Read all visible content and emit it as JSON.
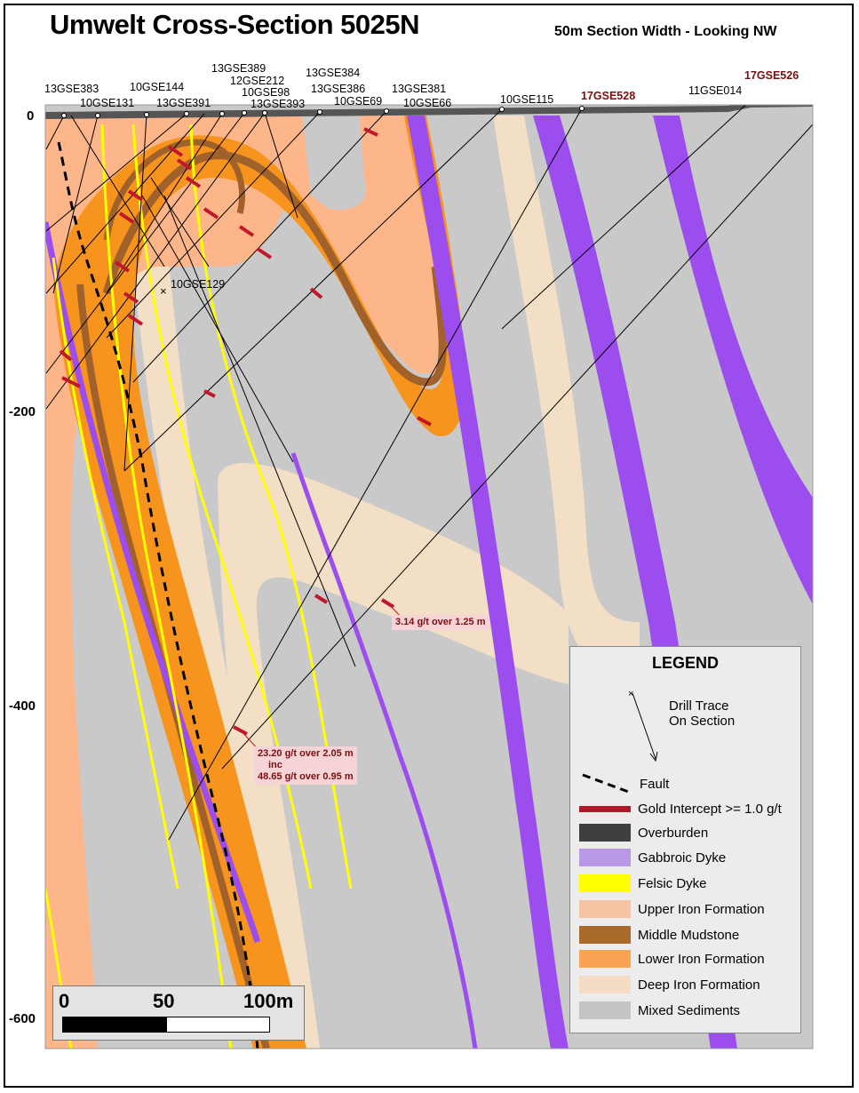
{
  "title": "Umwelt Cross-Section 5025N",
  "subtitle": "50m Section Width - Looking NW",
  "elevations": [
    "0",
    "-200",
    "-400",
    "-600"
  ],
  "drill_holes": [
    {
      "name": "13GSE383",
      "red": false
    },
    {
      "name": "10GSE131",
      "red": false
    },
    {
      "name": "10GSE144",
      "red": false
    },
    {
      "name": "13GSE391",
      "red": false
    },
    {
      "name": "13GSE389",
      "red": false
    },
    {
      "name": "12GSE212",
      "red": false
    },
    {
      "name": "10GSE98",
      "red": false
    },
    {
      "name": "13GSE393",
      "red": false
    },
    {
      "name": "13GSE384",
      "red": false
    },
    {
      "name": "13GSE386",
      "red": false
    },
    {
      "name": "10GSE69",
      "red": false
    },
    {
      "name": "13GSE381",
      "red": false
    },
    {
      "name": "10GSE66",
      "red": false
    },
    {
      "name": "10GSE115",
      "red": false
    },
    {
      "name": "17GSE528",
      "red": true
    },
    {
      "name": "11GSE014",
      "red": false
    },
    {
      "name": "17GSE526",
      "red": true
    },
    {
      "name": "10GSE129",
      "red": false
    }
  ],
  "intercepts": {
    "a": "3.14 g/t over 1.25 m",
    "b1": "23.20 g/t over 2.05 m",
    "b2": "inc",
    "b3": "48.65 g/t over 0.95 m"
  },
  "legend": {
    "title": "LEGEND",
    "drill_trace": "Drill Trace\nOn Section",
    "drill_trace_1": "Drill Trace",
    "drill_trace_2": "On Section",
    "fault": "Fault",
    "items": [
      {
        "label": "Gold Intercept >= 1.0 g/t",
        "color": "#b0182a"
      },
      {
        "label": "Overburden",
        "color": "#3f3f3f"
      },
      {
        "label": "Gabbroic Dyke",
        "color": "#b999e6"
      },
      {
        "label": "Felsic Dyke",
        "color": "#ffff00"
      },
      {
        "label": "Upper Iron Formation",
        "color": "#f6c4a2"
      },
      {
        "label": "Middle Mudstone",
        "color": "#a86b2c"
      },
      {
        "label": "Lower Iron Formation",
        "color": "#f9a453"
      },
      {
        "label": "Deep Iron Formation",
        "color": "#f3dcc3"
      },
      {
        "label": "Mixed Sediments",
        "color": "#c4c4c4"
      }
    ]
  },
  "scale": {
    "s0": "0",
    "s1": "50",
    "s2": "100m"
  },
  "colors": {
    "mixed_sediments": "#c9c9c9",
    "upper_if": "#fcb68a",
    "lower_if": "#f7941e",
    "middle_mudstone": "#a0612b",
    "deep_if": "#f3dfc6",
    "gabbro": "#9b4dee",
    "felsic": "#ffff00",
    "overburden": "#555555",
    "intercept": "#c0182a"
  }
}
